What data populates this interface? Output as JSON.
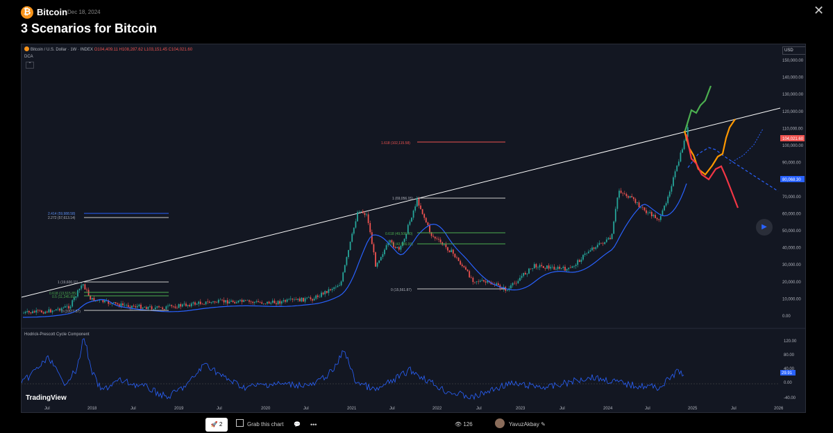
{
  "header": {
    "icon_glyph": "₿",
    "name": "Bitcoin",
    "date": "Dec 18, 2024",
    "close_glyph": "✕",
    "title": "3 Scenarios for Bitcoin"
  },
  "chart": {
    "symbol": "Bitcoin / U.S. Dollar · 1W · INDEX",
    "ohlc": "O104,409.11 H108,287.62 L103,151.45 C104,021.60",
    "indicator": "DCA",
    "currency": "USD",
    "collapse_glyph": "⌃",
    "price_axis": [
      "150,000.00",
      "140,000.00",
      "130,000.00",
      "120,000.00",
      "110,000.00",
      "100,000.00",
      "90,000.00",
      "80,000.00",
      "70,000.00",
      "60,000.00",
      "50,000.00",
      "40,000.00",
      "30,000.00",
      "20,000.00",
      "10,000.00",
      "0.00"
    ],
    "last_price_label": "104,021.60",
    "ma_label": "80,068.30",
    "fib_labels": [
      "2.414 (59,988.58)",
      "2.272 (57,613.14)",
      "1 (19,600.11)",
      "0.618 (13,515.85)",
      "0.5 (11,245.89)",
      "0 (3,677.57)",
      "1.618 (102,115.58)",
      "1 (69,056.15)",
      "0.618 (49,508.00)",
      "0.5 (43,586.00)",
      "0 (15,561.87)"
    ],
    "oscillator_title": "Hodrick-Prescott Cycle Component",
    "oscillator_axis": [
      "120.00",
      "80.00",
      "40.00",
      "0.00",
      "-40.00"
    ],
    "oscillator_value": "29.91",
    "time_axis": [
      "Jul",
      "2018",
      "Jul",
      "2019",
      "Jul",
      "2020",
      "Jul",
      "2021",
      "Jul",
      "2022",
      "Jul",
      "2023",
      "Jul",
      "2024",
      "Jul",
      "2025",
      "Jul",
      "2026"
    ],
    "logo_text": "TradingView",
    "colors": {
      "background": "#131722",
      "up": "#26a69a",
      "down": "#ef5350",
      "ma": "#2962ff",
      "bull": "#4caf50",
      "base": "#ff9800",
      "bear": "#f23645",
      "trendline": "#ffffff"
    }
  },
  "bottom_bar": {
    "boost_count": "2",
    "grab_label": "Grab this chart",
    "views": "126",
    "author": "YavuzAkbay"
  },
  "icons": [
    "bitcoin-icon",
    "close-icon",
    "rocket-icon",
    "camera-icon",
    "comment-icon",
    "more-icon",
    "eye-icon",
    "play-icon",
    "edit-icon"
  ]
}
